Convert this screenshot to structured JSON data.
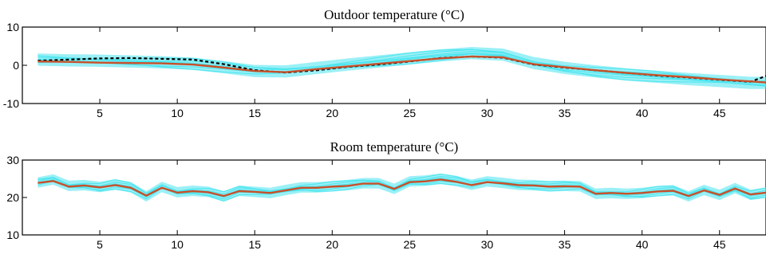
{
  "chart_data": [
    {
      "type": "line",
      "title": "Outdoor temperature (°C)",
      "xlabel": "",
      "ylabel": "",
      "xlim": [
        0,
        48
      ],
      "ylim": [
        -10,
        10
      ],
      "xticks": [
        5,
        10,
        15,
        20,
        25,
        30,
        35,
        40,
        45
      ],
      "yticks": [
        -10,
        0,
        10
      ],
      "grid": false,
      "legend": "none",
      "x": [
        1,
        3,
        5,
        7,
        9,
        11,
        13,
        15,
        17,
        19,
        21,
        23,
        25,
        27,
        29,
        31,
        33,
        35,
        37,
        39,
        41,
        43,
        45,
        47,
        48
      ],
      "series": [
        {
          "role": "ensemble-band",
          "color": "#48e4ee",
          "ensemble_spread": 1.6,
          "values": [
            1.5,
            1.3,
            1.2,
            1.0,
            0.8,
            0.4,
            -0.5,
            -1.5,
            -1.6,
            -0.7,
            0.2,
            1.0,
            1.8,
            2.6,
            3.2,
            2.8,
            0.6,
            -0.7,
            -1.6,
            -2.4,
            -3.0,
            -3.6,
            -4.1,
            -4.6,
            -4.6
          ]
        },
        {
          "role": "dashed-black",
          "color": "#000000",
          "style": "dashed",
          "values": [
            1.2,
            1.5,
            1.8,
            1.9,
            1.7,
            1.5,
            0.3,
            -1.3,
            -1.9,
            -1.3,
            -0.4,
            0.2,
            1.0,
            1.9,
            2.3,
            2.0,
            0.2,
            -0.6,
            -1.3,
            -2.0,
            -2.7,
            -3.2,
            -3.8,
            -4.3,
            -2.8
          ]
        },
        {
          "role": "red-line",
          "color": "#c8502a",
          "style": "solid",
          "values": [
            1.0,
            0.9,
            0.7,
            0.6,
            0.5,
            0.2,
            -0.6,
            -1.5,
            -1.8,
            -1.0,
            -0.3,
            0.4,
            1.1,
            1.8,
            2.3,
            2.1,
            0.3,
            -0.5,
            -1.3,
            -2.0,
            -2.6,
            -3.1,
            -3.7,
            -4.2,
            -4.5
          ]
        }
      ]
    },
    {
      "type": "line",
      "title": "Room temperature (°C)",
      "xlabel": "",
      "ylabel": "",
      "xlim": [
        0,
        48
      ],
      "ylim": [
        10,
        30
      ],
      "xticks": [
        5,
        10,
        15,
        20,
        25,
        30,
        35,
        40,
        45
      ],
      "yticks": [
        10,
        20,
        30
      ],
      "grid": false,
      "legend": "none",
      "x": [
        1,
        2,
        3,
        4,
        5,
        6,
        7,
        8,
        9,
        10,
        11,
        12,
        13,
        14,
        15,
        16,
        17,
        18,
        19,
        20,
        21,
        22,
        23,
        24,
        25,
        26,
        27,
        28,
        29,
        30,
        31,
        32,
        33,
        34,
        35,
        36,
        37,
        38,
        39,
        40,
        41,
        42,
        43,
        44,
        45,
        46,
        47,
        48
      ],
      "series": [
        {
          "role": "ensemble-band",
          "color": "#48e4ee",
          "ensemble_spread": 1.4,
          "values": [
            24.0,
            24.8,
            23.1,
            23.3,
            22.8,
            23.5,
            22.7,
            20.3,
            22.8,
            21.4,
            21.8,
            21.5,
            20.3,
            21.8,
            21.5,
            21.2,
            22.0,
            22.7,
            22.7,
            23.0,
            23.3,
            23.8,
            23.8,
            22.3,
            24.3,
            24.5,
            25.0,
            24.4,
            23.4,
            24.3,
            23.9,
            23.4,
            23.3,
            23.0,
            23.1,
            23.0,
            21.0,
            21.2,
            21.0,
            21.2,
            21.7,
            21.9,
            20.3,
            22.0,
            20.7,
            22.5,
            20.7,
            21.3
          ]
        },
        {
          "role": "red-line",
          "color": "#c8502a",
          "style": "solid",
          "values": [
            23.9,
            24.4,
            22.9,
            23.2,
            22.7,
            23.3,
            22.6,
            20.5,
            22.6,
            21.3,
            21.7,
            21.4,
            20.4,
            21.7,
            21.5,
            21.2,
            21.9,
            22.6,
            22.6,
            22.9,
            23.1,
            23.7,
            23.7,
            22.3,
            24.1,
            24.3,
            24.8,
            24.2,
            23.3,
            24.1,
            23.8,
            23.3,
            23.2,
            22.9,
            23.0,
            22.9,
            21.0,
            21.2,
            21.0,
            21.2,
            21.6,
            21.8,
            20.4,
            21.9,
            20.7,
            22.4,
            20.8,
            21.3
          ]
        }
      ]
    }
  ]
}
